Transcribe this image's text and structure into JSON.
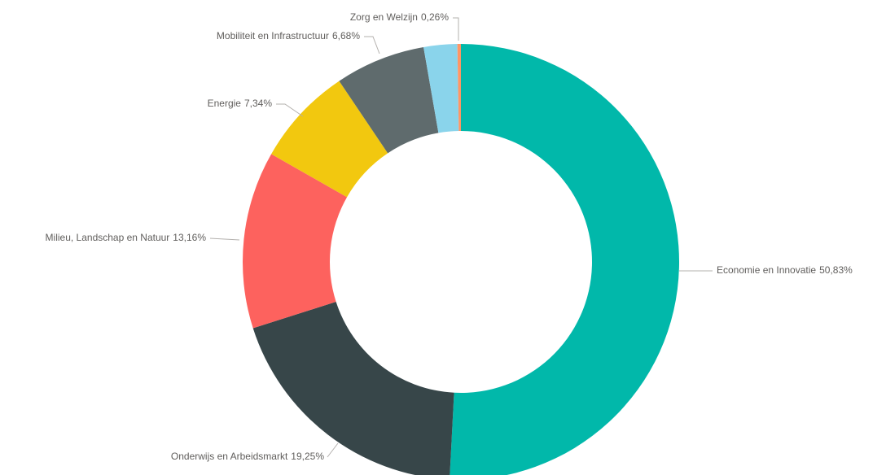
{
  "chart_data": {
    "type": "donut",
    "categories": [
      "Economie en Innovatie",
      "Onderwijs en Arbeidsmarkt",
      "Milieu, Landschap en Natuur",
      "Energie",
      "Mobiliteit en Infrastructuur",
      null,
      "Zorg en Welzijn"
    ],
    "values": [
      50.83,
      19.25,
      13.16,
      7.34,
      6.68,
      2.48,
      0.26
    ],
    "value_labels": [
      "50,83%",
      "19,25%",
      "13,16%",
      "7,34%",
      "6,68%",
      null,
      "0,26%"
    ],
    "colors": [
      "#01b8aa",
      "#374649",
      "#fd625e",
      "#f2c80f",
      "#5f6b6d",
      "#8ad4eb",
      "#fe9666"
    ]
  }
}
